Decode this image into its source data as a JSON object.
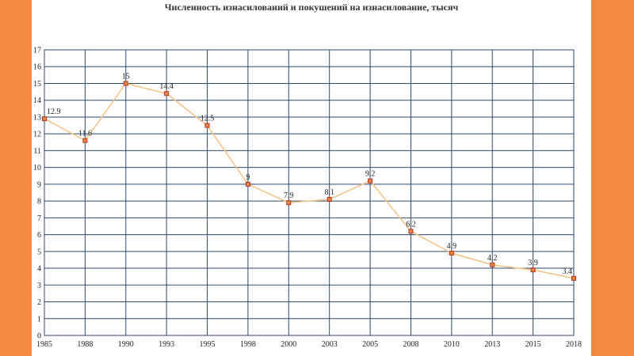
{
  "colors": {
    "background": "#f08a3c",
    "panel": "#ffffff",
    "grid": "#2e4a6b",
    "line": "#f5c48a",
    "marker_fill": "#e7873a",
    "marker_stroke": "#b5322a"
  },
  "chart_data": {
    "type": "line",
    "title": "Численность изнасилований и покушений на изнасилование, тысяч",
    "xlabel": "",
    "ylabel": "",
    "categories": [
      "1985",
      "1988",
      "1990",
      "1993",
      "1995",
      "1998",
      "2000",
      "2003",
      "2005",
      "2008",
      "2010",
      "2013",
      "2015",
      "2018"
    ],
    "values": [
      12.9,
      11.6,
      15,
      14.4,
      12.5,
      9,
      7.9,
      8.1,
      9.2,
      6.2,
      4.9,
      4.2,
      3.9,
      3.4
    ],
    "data_labels": [
      "12.9",
      "11.6",
      "15",
      "14.4",
      "12.5",
      "9",
      "7.9",
      "8.1",
      "9.2",
      "6.2",
      "4.9",
      "4.2",
      "3.9",
      "3.4"
    ],
    "ylim": [
      0,
      17
    ],
    "yticks": [
      0,
      1,
      2,
      3,
      4,
      5,
      6,
      7,
      8,
      9,
      10,
      11,
      12,
      13,
      14,
      15,
      16,
      17
    ],
    "grid": true,
    "legend": "none"
  }
}
